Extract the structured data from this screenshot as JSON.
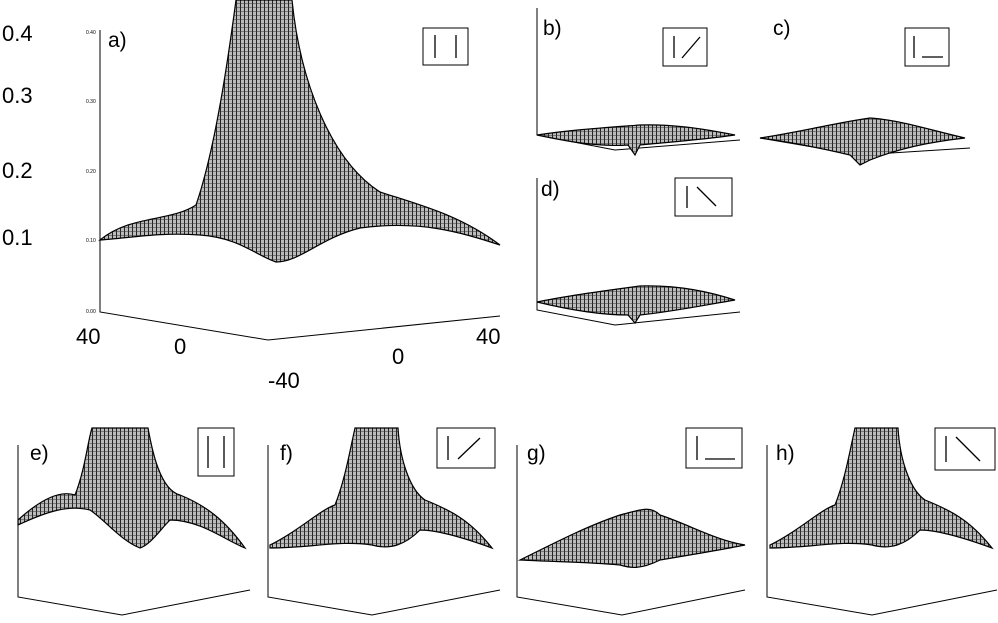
{
  "panel_a": {
    "label": "a)",
    "z_ticks": [
      "0.4",
      "0.3",
      "0.2",
      "0.1"
    ],
    "z_ticks_small": [
      "0.40",
      "0.30",
      "0.20",
      "0.10",
      "0.00"
    ],
    "x_ticks": [
      "40",
      "0"
    ],
    "y_ticks": [
      "0",
      "40"
    ],
    "y_min_label": "-40"
  },
  "panels": [
    {
      "label": "b)"
    },
    {
      "label": "c)"
    },
    {
      "label": "d)"
    },
    {
      "label": "e)"
    },
    {
      "label": "f)"
    },
    {
      "label": "g)"
    },
    {
      "label": "h)"
    }
  ]
}
